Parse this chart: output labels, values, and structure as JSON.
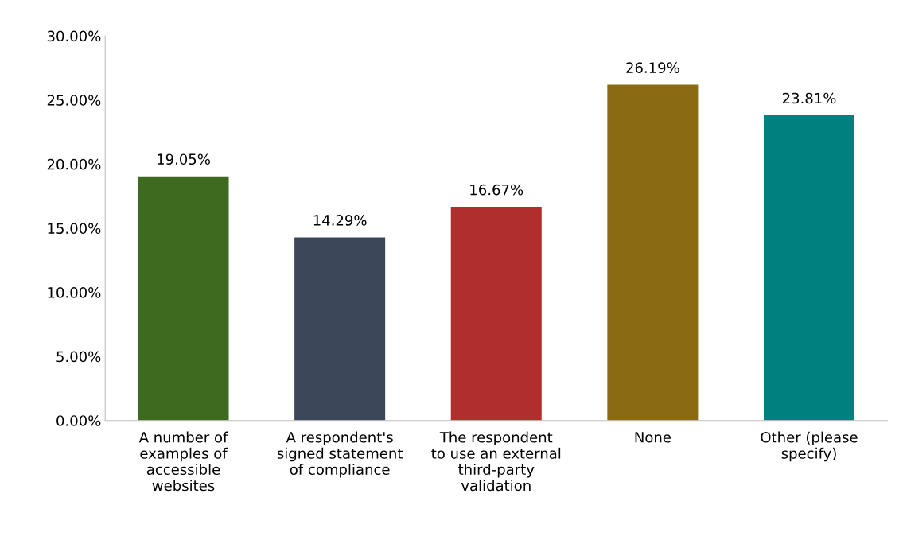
{
  "chart_data": {
    "type": "bar",
    "categories": [
      "A number of\nexamples of\naccessible\nwebsites",
      "A respondent's\nsigned statement\nof compliance",
      "The respondent\nto use an external\nthird-party\nvalidation",
      "None",
      "Other (please\nspecify)"
    ],
    "values": [
      19.05,
      14.29,
      16.67,
      26.19,
      23.81
    ],
    "colors": [
      "#3d6a1e",
      "#3b4659",
      "#b02f2d",
      "#8a6a12",
      "#00807e"
    ],
    "value_labels": [
      "19.05%",
      "14.29%",
      "16.67%",
      "26.19%",
      "23.81%"
    ],
    "ylim": [
      0,
      30
    ],
    "yticks": [
      {
        "value": 0,
        "label": "0.00%"
      },
      {
        "value": 5,
        "label": "5.00%"
      },
      {
        "value": 10,
        "label": "10.00%"
      },
      {
        "value": 15,
        "label": "15.00%"
      },
      {
        "value": 20,
        "label": "20.00%"
      },
      {
        "value": 25,
        "label": "25.00%"
      },
      {
        "value": 30,
        "label": "30.00%"
      }
    ],
    "grid": false,
    "legend": false
  }
}
